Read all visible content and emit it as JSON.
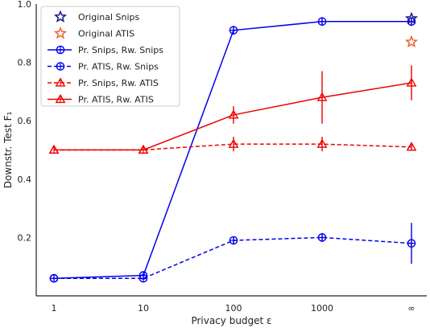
{
  "chart_data": {
    "type": "line",
    "title": "",
    "xlabel": "Privacy budget ε",
    "ylabel": "Downstr. Test F₁",
    "x": [
      "1",
      "10",
      "100",
      "1000",
      "∞"
    ],
    "ylim": [
      0.0,
      1.0
    ],
    "yticks": [
      "0.2",
      "0.4",
      "0.6",
      "0.8",
      "1.0"
    ],
    "yticks_values": [
      0.2,
      0.4,
      0.6,
      0.8,
      1.0
    ],
    "grid": false,
    "legend_position": "top-left",
    "series": [
      {
        "name": "Pr. Snips, Rw. Snips",
        "color": "#0000ee",
        "dash": "solid",
        "marker": "circle-plus",
        "values": [
          0.06,
          0.07,
          0.91,
          0.94,
          0.94
        ],
        "errors": [
          0.0,
          0.0,
          0.015,
          0.015,
          0.015
        ]
      },
      {
        "name": "Pr. ATIS, Rw. Snips",
        "color": "#0000ee",
        "dash": "dashed",
        "marker": "circle-plus",
        "values": [
          0.06,
          0.06,
          0.19,
          0.2,
          0.18
        ],
        "errors": [
          0.0,
          0.0,
          0.01,
          0.015,
          0.07
        ]
      },
      {
        "name": "Pr. Snips, Rw. ATIS",
        "color": "#ee0000",
        "dash": "dashed",
        "marker": "triangle",
        "values": [
          0.5,
          0.5,
          0.52,
          0.52,
          0.51
        ],
        "errors": [
          0.0,
          0.0,
          0.025,
          0.025,
          0.01
        ]
      },
      {
        "name": "Pr. ATIS, Rw. ATIS",
        "color": "#ee0000",
        "dash": "solid",
        "marker": "triangle",
        "values": [
          0.5,
          0.5,
          0.62,
          0.68,
          0.73
        ],
        "errors": [
          0.0,
          0.0,
          0.03,
          0.09,
          0.06
        ]
      }
    ],
    "reference_points": [
      {
        "name": "Original Snips",
        "x": "∞",
        "value": 0.95,
        "color": "#1a1a8a",
        "marker": "star"
      },
      {
        "name": "Original ATIS",
        "x": "∞",
        "value": 0.87,
        "color": "#f06030",
        "marker": "star"
      }
    ]
  }
}
